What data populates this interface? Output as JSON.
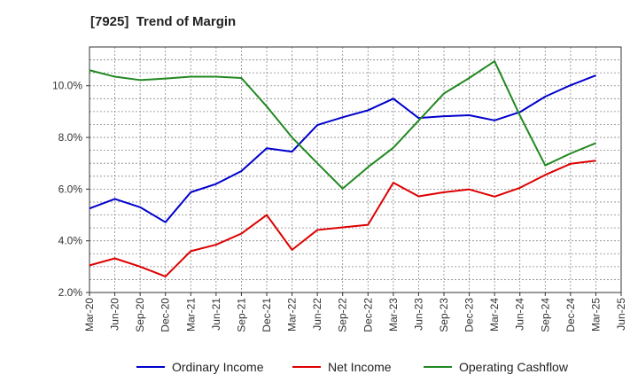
{
  "chart_data": {
    "type": "line",
    "title": "[7925]  Trend of Margin",
    "xlabel": "",
    "ylabel": "",
    "categories": [
      "Mar-20",
      "Jun-20",
      "Sep-20",
      "Dec-20",
      "Mar-21",
      "Jun-21",
      "Sep-21",
      "Dec-21",
      "Mar-22",
      "Jun-22",
      "Sep-22",
      "Dec-22",
      "Mar-23",
      "Jun-23",
      "Sep-23",
      "Dec-23",
      "Mar-24",
      "Jun-24",
      "Sep-24",
      "Dec-24",
      "Mar-25",
      "Jun-25"
    ],
    "ylim": [
      2.0,
      11.5
    ],
    "yticks": [
      2.0,
      4.0,
      6.0,
      8.0,
      10.0
    ],
    "ytick_labels": [
      "2.0%",
      "4.0%",
      "6.0%",
      "8.0%",
      "10.0%"
    ],
    "grid": true,
    "legend_position": "bottom",
    "series": [
      {
        "name": "Ordinary Income",
        "color": "#0000cc",
        "values": [
          5.25,
          5.62,
          5.3,
          4.72,
          5.88,
          6.2,
          6.7,
          7.58,
          7.45,
          8.48,
          8.78,
          9.05,
          9.5,
          8.75,
          8.82,
          8.86,
          8.66,
          8.98,
          9.58,
          10.02,
          10.4,
          null
        ]
      },
      {
        "name": "Net Income",
        "color": "#dd0000",
        "values": [
          3.05,
          3.32,
          3.0,
          2.62,
          3.6,
          3.85,
          4.28,
          5.0,
          3.65,
          4.42,
          4.52,
          4.62,
          6.25,
          5.72,
          5.88,
          5.99,
          5.71,
          6.05,
          6.55,
          6.98,
          7.1,
          null
        ]
      },
      {
        "name": "Operating Cashflow",
        "color": "#228822",
        "values": [
          10.6,
          10.35,
          10.22,
          10.28,
          10.35,
          10.35,
          10.3,
          9.2,
          8.0,
          7.0,
          6.02,
          6.85,
          7.6,
          8.65,
          9.7,
          10.3,
          10.95,
          8.85,
          6.92,
          7.38,
          7.78,
          null
        ]
      }
    ]
  }
}
